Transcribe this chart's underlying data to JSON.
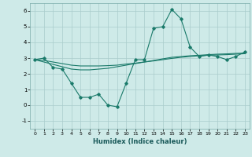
{
  "xlabel": "Humidex (Indice chaleur)",
  "background_color": "#ceeae8",
  "grid_color": "#aacccc",
  "line_color": "#1a7a6a",
  "xlim": [
    -0.5,
    23.5
  ],
  "ylim": [
    -1.5,
    6.5
  ],
  "xticks": [
    0,
    1,
    2,
    3,
    4,
    5,
    6,
    7,
    8,
    9,
    10,
    11,
    12,
    13,
    14,
    15,
    16,
    17,
    18,
    19,
    20,
    21,
    22,
    23
  ],
  "yticks": [
    -1,
    0,
    1,
    2,
    3,
    4,
    5,
    6
  ],
  "series": [
    [
      2.9,
      3.0,
      2.4,
      2.3,
      1.4,
      0.5,
      0.5,
      0.7,
      0.0,
      -0.1,
      1.4,
      2.9,
      2.9,
      4.9,
      5.0,
      6.1,
      5.5,
      3.7,
      3.1,
      3.2,
      3.1,
      2.9,
      3.1,
      3.4
    ],
    [
      2.9,
      2.75,
      2.6,
      2.45,
      2.3,
      2.25,
      2.25,
      2.3,
      2.35,
      2.45,
      2.55,
      2.65,
      2.75,
      2.85,
      2.95,
      3.05,
      3.1,
      3.15,
      3.18,
      3.22,
      3.25,
      3.27,
      3.3,
      3.32
    ],
    [
      2.9,
      2.85,
      2.75,
      2.65,
      2.55,
      2.5,
      2.5,
      2.5,
      2.52,
      2.55,
      2.62,
      2.68,
      2.75,
      2.82,
      2.9,
      2.98,
      3.05,
      3.1,
      3.15,
      3.18,
      3.2,
      3.22,
      3.25,
      3.28
    ]
  ]
}
